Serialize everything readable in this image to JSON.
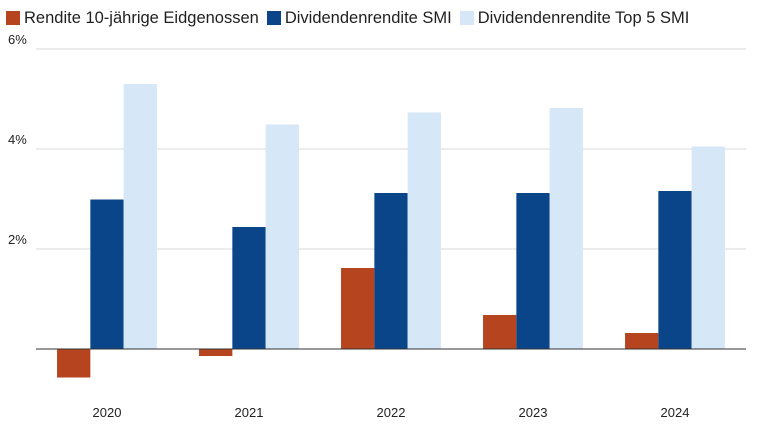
{
  "chart_data": {
    "type": "bar",
    "categories": [
      "2020",
      "2021",
      "2022",
      "2023",
      "2024"
    ],
    "series": [
      {
        "name": "Rendite 10-jährige Eidgenossen",
        "color": "#b5441f",
        "values": [
          -0.57,
          -0.14,
          1.62,
          0.68,
          0.32
        ]
      },
      {
        "name": "Dividendenrendite SMI",
        "color": "#0b4589",
        "values": [
          2.99,
          2.44,
          3.12,
          3.12,
          3.16
        ]
      },
      {
        "name": "Dividendenrendite Top 5 SMI",
        "color": "#d6e7f7",
        "values": [
          5.3,
          4.49,
          4.73,
          4.82,
          4.05
        ]
      }
    ],
    "y_ticks": [
      {
        "value": 2,
        "label": "2%"
      },
      {
        "value": 4,
        "label": "4%"
      },
      {
        "value": 6,
        "label": "6%"
      }
    ],
    "ylim": [
      -1,
      6
    ],
    "title": "",
    "xlabel": "",
    "ylabel": "",
    "grid": true,
    "legend_position": "top-left"
  }
}
